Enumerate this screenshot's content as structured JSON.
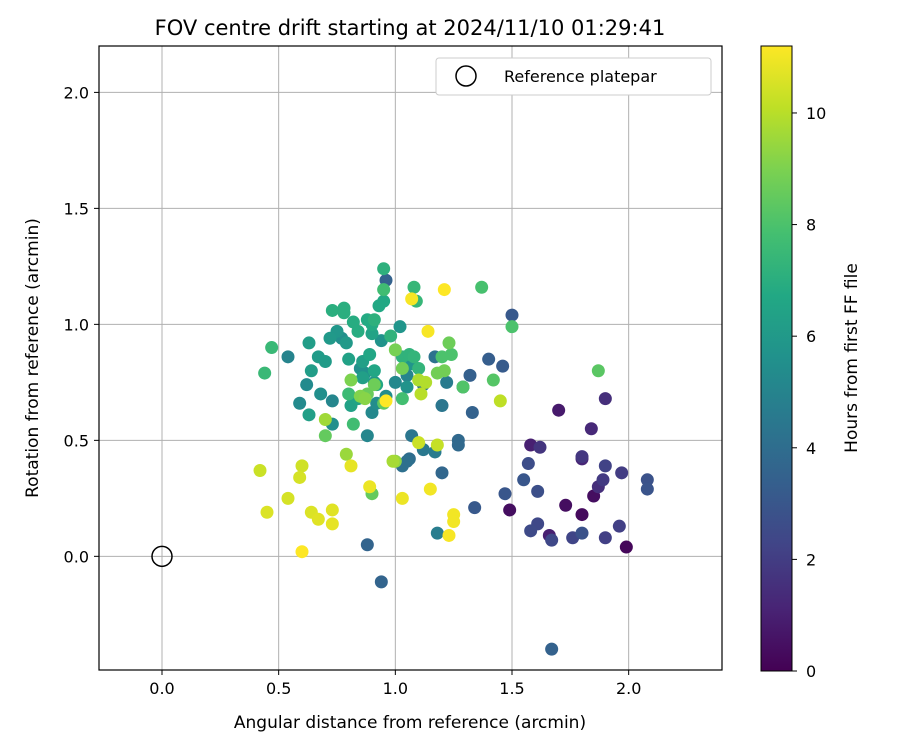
{
  "chart_data": {
    "type": "scatter",
    "title": "FOV centre drift starting at 2024/11/10 01:29:41",
    "xlabel": "Angular distance from reference (arcmin)",
    "ylabel": "Rotation from reference (arcmin)",
    "xlim": [
      -0.27,
      2.4
    ],
    "ylim": [
      -0.49,
      2.2
    ],
    "xticks": [
      "0.0",
      "0.5",
      "1.0",
      "1.5",
      "2.0"
    ],
    "xtick_values": [
      0,
      0.5,
      1.0,
      1.5,
      2.0
    ],
    "yticks": [
      "0.0",
      "0.5",
      "1.0",
      "1.5",
      "2.0"
    ],
    "ytick_values": [
      0,
      0.5,
      1.0,
      1.5,
      2.0
    ],
    "grid": true,
    "legend": {
      "position": "top-right",
      "entries": [
        "Reference platepar"
      ]
    },
    "reference_point": {
      "x": 0.0,
      "y": 0.0,
      "label": "Reference platepar"
    },
    "colorbar": {
      "label": "Hours from first FF file",
      "range": [
        0,
        11.2
      ],
      "ticks": [
        "0",
        "2",
        "4",
        "6",
        "8",
        "10"
      ],
      "tick_values": [
        0,
        2,
        4,
        6,
        8,
        10
      ],
      "colormap": "viridis"
    },
    "points": [
      [
        1.99,
        0.04,
        0.2
      ],
      [
        1.8,
        0.18,
        0.3
      ],
      [
        1.85,
        0.26,
        0.4
      ],
      [
        1.73,
        0.22,
        0.4
      ],
      [
        1.49,
        0.2,
        0.4
      ],
      [
        1.7,
        0.63,
        0.8
      ],
      [
        1.58,
        0.48,
        1.0
      ],
      [
        1.66,
        0.09,
        1.0
      ],
      [
        1.8,
        0.42,
        1.2
      ],
      [
        1.84,
        0.55,
        1.3
      ],
      [
        1.9,
        0.68,
        1.5
      ],
      [
        1.87,
        0.3,
        1.5
      ],
      [
        1.62,
        0.47,
        1.7
      ],
      [
        1.8,
        0.43,
        1.8
      ],
      [
        1.89,
        0.33,
        1.9
      ],
      [
        1.97,
        0.36,
        2.0
      ],
      [
        1.96,
        0.13,
        2.1
      ],
      [
        1.9,
        0.08,
        2.1
      ],
      [
        1.9,
        0.39,
        2.2
      ],
      [
        1.76,
        0.08,
        2.3
      ],
      [
        1.67,
        0.07,
        2.4
      ],
      [
        1.61,
        0.14,
        2.4
      ],
      [
        1.58,
        0.11,
        2.5
      ],
      [
        1.57,
        0.4,
        2.6
      ],
      [
        1.61,
        0.28,
        2.7
      ],
      [
        1.8,
        0.1,
        2.8
      ],
      [
        2.08,
        0.33,
        2.8
      ],
      [
        2.08,
        0.29,
        2.9
      ],
      [
        1.55,
        0.33,
        3.0
      ],
      [
        1.47,
        0.27,
        3.0
      ],
      [
        1.34,
        0.21,
        3.1
      ],
      [
        1.5,
        1.04,
        3.1
      ],
      [
        1.46,
        0.82,
        3.2
      ],
      [
        1.4,
        0.85,
        3.3
      ],
      [
        1.32,
        0.78,
        3.4
      ],
      [
        1.33,
        0.62,
        3.5
      ],
      [
        0.96,
        1.19,
        3.5
      ],
      [
        1.67,
        -0.4,
        3.5
      ],
      [
        0.94,
        -0.11,
        3.6
      ],
      [
        0.88,
        0.05,
        3.6
      ],
      [
        1.2,
        0.36,
        3.7
      ],
      [
        1.27,
        0.48,
        3.8
      ],
      [
        1.27,
        0.5,
        3.8
      ],
      [
        1.06,
        0.42,
        4.0
      ],
      [
        1.03,
        0.39,
        4.1
      ],
      [
        1.05,
        0.41,
        4.1
      ],
      [
        1.17,
        0.86,
        4.2
      ],
      [
        1.12,
        0.74,
        4.3
      ],
      [
        1.2,
        0.65,
        4.4
      ],
      [
        1.07,
        0.52,
        4.4
      ],
      [
        1.12,
        0.46,
        4.5
      ],
      [
        1.17,
        0.45,
        4.6
      ],
      [
        1.22,
        0.75,
        4.6
      ],
      [
        1.18,
        0.1,
        4.7
      ],
      [
        1.29,
        0.73,
        4.9
      ],
      [
        1.05,
        0.78,
        5.0
      ],
      [
        0.54,
        0.86,
        5.0
      ],
      [
        0.73,
        0.67,
        5.1
      ],
      [
        0.88,
        0.52,
        5.1
      ],
      [
        0.9,
        0.62,
        5.2
      ],
      [
        1.0,
        0.75,
        5.2
      ],
      [
        0.59,
        0.66,
        5.3
      ],
      [
        0.62,
        0.74,
        5.3
      ],
      [
        0.92,
        0.66,
        5.4
      ],
      [
        0.96,
        0.69,
        5.4
      ],
      [
        0.73,
        0.57,
        5.5
      ],
      [
        0.68,
        0.7,
        5.5
      ],
      [
        0.77,
        0.94,
        5.5
      ],
      [
        0.87,
        0.79,
        5.6
      ],
      [
        0.85,
        0.81,
        5.6
      ],
      [
        0.91,
        0.75,
        5.7
      ],
      [
        0.94,
        0.93,
        5.7
      ],
      [
        1.05,
        0.73,
        5.7
      ],
      [
        1.07,
        0.83,
        5.8
      ],
      [
        1.02,
        0.99,
        5.8
      ],
      [
        0.75,
        0.97,
        5.9
      ],
      [
        0.72,
        0.94,
        6.0
      ],
      [
        0.79,
        0.92,
        6.0
      ],
      [
        0.67,
        0.86,
        6.1
      ],
      [
        0.7,
        0.84,
        6.1
      ],
      [
        0.64,
        0.8,
        6.2
      ],
      [
        0.63,
        0.92,
        6.2
      ],
      [
        0.63,
        0.61,
        6.3
      ],
      [
        0.86,
        0.84,
        6.3
      ],
      [
        0.86,
        0.77,
        6.3
      ],
      [
        0.81,
        0.65,
        6.4
      ],
      [
        0.8,
        0.85,
        6.4
      ],
      [
        0.84,
        0.68,
        6.5
      ],
      [
        0.9,
        0.96,
        6.5
      ],
      [
        0.89,
        0.87,
        6.6
      ],
      [
        0.91,
        0.8,
        6.6
      ],
      [
        0.92,
        0.74,
        6.6
      ],
      [
        0.93,
        1.08,
        6.7
      ],
      [
        0.95,
        1.1,
        6.7
      ],
      [
        0.9,
        1.0,
        6.8
      ],
      [
        0.88,
        1.02,
        6.8
      ],
      [
        0.84,
        0.97,
        6.9
      ],
      [
        0.82,
        1.01,
        6.9
      ],
      [
        0.78,
        1.07,
        7.0
      ],
      [
        0.73,
        1.06,
        7.0
      ],
      [
        0.78,
        1.05,
        7.0
      ],
      [
        0.91,
        1.02,
        7.1
      ],
      [
        0.95,
        1.24,
        7.1
      ],
      [
        0.98,
        0.95,
        7.2
      ],
      [
        1.03,
        0.86,
        7.2
      ],
      [
        1.06,
        0.87,
        7.2
      ],
      [
        1.08,
        0.86,
        7.3
      ],
      [
        1.1,
        0.81,
        7.3
      ],
      [
        1.09,
        1.1,
        7.4
      ],
      [
        1.08,
        1.16,
        7.4
      ],
      [
        0.44,
        0.79,
        7.5
      ],
      [
        0.47,
        0.9,
        7.5
      ],
      [
        0.8,
        0.7,
        7.6
      ],
      [
        0.82,
        0.57,
        7.7
      ],
      [
        0.95,
        1.15,
        7.7
      ],
      [
        1.03,
        0.68,
        7.8
      ],
      [
        1.37,
        1.16,
        7.9
      ],
      [
        1.5,
        0.99,
        8.0
      ],
      [
        1.24,
        0.87,
        8.0
      ],
      [
        1.2,
        0.86,
        8.0
      ],
      [
        1.29,
        0.73,
        8.1
      ],
      [
        1.42,
        0.76,
        8.2
      ],
      [
        1.87,
        0.8,
        8.3
      ],
      [
        0.95,
        0.66,
        8.4
      ],
      [
        0.9,
        0.27,
        8.5
      ],
      [
        0.7,
        0.52,
        8.5
      ],
      [
        0.88,
        0.7,
        8.6
      ],
      [
        0.91,
        0.74,
        8.7
      ],
      [
        1.23,
        0.92,
        8.7
      ],
      [
        1.03,
        0.81,
        8.8
      ],
      [
        1.18,
        0.79,
        8.8
      ],
      [
        1.21,
        0.8,
        8.8
      ],
      [
        1.0,
        0.89,
        8.9
      ],
      [
        0.81,
        0.76,
        9.0
      ],
      [
        0.85,
        0.69,
        9.1
      ],
      [
        0.87,
        0.68,
        9.2
      ],
      [
        1.0,
        0.41,
        9.3
      ],
      [
        0.79,
        0.44,
        9.5
      ],
      [
        0.7,
        0.59,
        9.6
      ],
      [
        0.99,
        0.41,
        9.7
      ],
      [
        1.1,
        0.76,
        9.8
      ],
      [
        1.13,
        0.75,
        9.9
      ],
      [
        1.11,
        0.7,
        10.0
      ],
      [
        1.45,
        0.67,
        10.1
      ],
      [
        1.18,
        0.48,
        10.2
      ],
      [
        1.1,
        0.49,
        10.3
      ],
      [
        0.42,
        0.37,
        10.3
      ],
      [
        0.6,
        0.39,
        10.4
      ],
      [
        0.59,
        0.34,
        10.5
      ],
      [
        0.54,
        0.25,
        10.5
      ],
      [
        0.45,
        0.19,
        10.6
      ],
      [
        0.64,
        0.19,
        10.6
      ],
      [
        0.67,
        0.16,
        10.7
      ],
      [
        0.73,
        0.2,
        10.7
      ],
      [
        0.73,
        0.14,
        10.8
      ],
      [
        0.81,
        0.39,
        10.8
      ],
      [
        0.89,
        0.3,
        10.9
      ],
      [
        1.03,
        0.25,
        10.9
      ],
      [
        1.15,
        0.29,
        11.0
      ],
      [
        1.25,
        0.18,
        11.0
      ],
      [
        1.25,
        0.15,
        11.0
      ],
      [
        1.23,
        0.09,
        11.1
      ],
      [
        1.14,
        0.97,
        11.1
      ],
      [
        1.07,
        1.11,
        11.1
      ],
      [
        1.21,
        1.15,
        11.2
      ],
      [
        0.6,
        0.02,
        11.2
      ],
      [
        0.96,
        0.67,
        11.2
      ]
    ]
  }
}
